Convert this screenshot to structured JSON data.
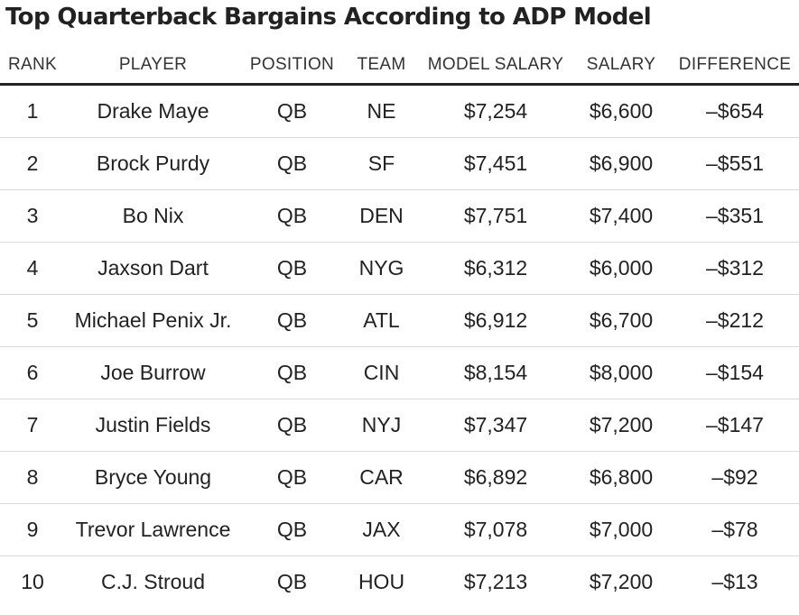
{
  "chart_data": {
    "type": "table",
    "title": "Top Quarterback Bargains According to ADP Model",
    "columns": [
      "RANK",
      "PLAYER",
      "POSITION",
      "TEAM",
      "MODEL SALARY",
      "SALARY",
      "DIFFERENCE"
    ],
    "rows": [
      [
        "1",
        "Drake Maye",
        "QB",
        "NE",
        "$7,254",
        "$6,600",
        "–$654"
      ],
      [
        "2",
        "Brock Purdy",
        "QB",
        "SF",
        "$7,451",
        "$6,900",
        "–$551"
      ],
      [
        "3",
        "Bo Nix",
        "QB",
        "DEN",
        "$7,751",
        "$7,400",
        "–$351"
      ],
      [
        "4",
        "Jaxson Dart",
        "QB",
        "NYG",
        "$6,312",
        "$6,000",
        "–$312"
      ],
      [
        "5",
        "Michael Penix Jr.",
        "QB",
        "ATL",
        "$6,912",
        "$6,700",
        "–$212"
      ],
      [
        "6",
        "Joe Burrow",
        "QB",
        "CIN",
        "$8,154",
        "$8,000",
        "–$154"
      ],
      [
        "7",
        "Justin Fields",
        "QB",
        "NYJ",
        "$7,347",
        "$7,200",
        "–$147"
      ],
      [
        "8",
        "Bryce Young",
        "QB",
        "CAR",
        "$6,892",
        "$6,800",
        "–$92"
      ],
      [
        "9",
        "Trevor Lawrence",
        "QB",
        "JAX",
        "$7,078",
        "$7,000",
        "–$78"
      ],
      [
        "10",
        "C.J. Stroud",
        "QB",
        "HOU",
        "$7,213",
        "$7,200",
        "–$13"
      ]
    ]
  },
  "colors": {
    "text": "#222222",
    "header_rule": "#222222",
    "row_rule": "#d9d9d9",
    "background": "#ffffff"
  }
}
